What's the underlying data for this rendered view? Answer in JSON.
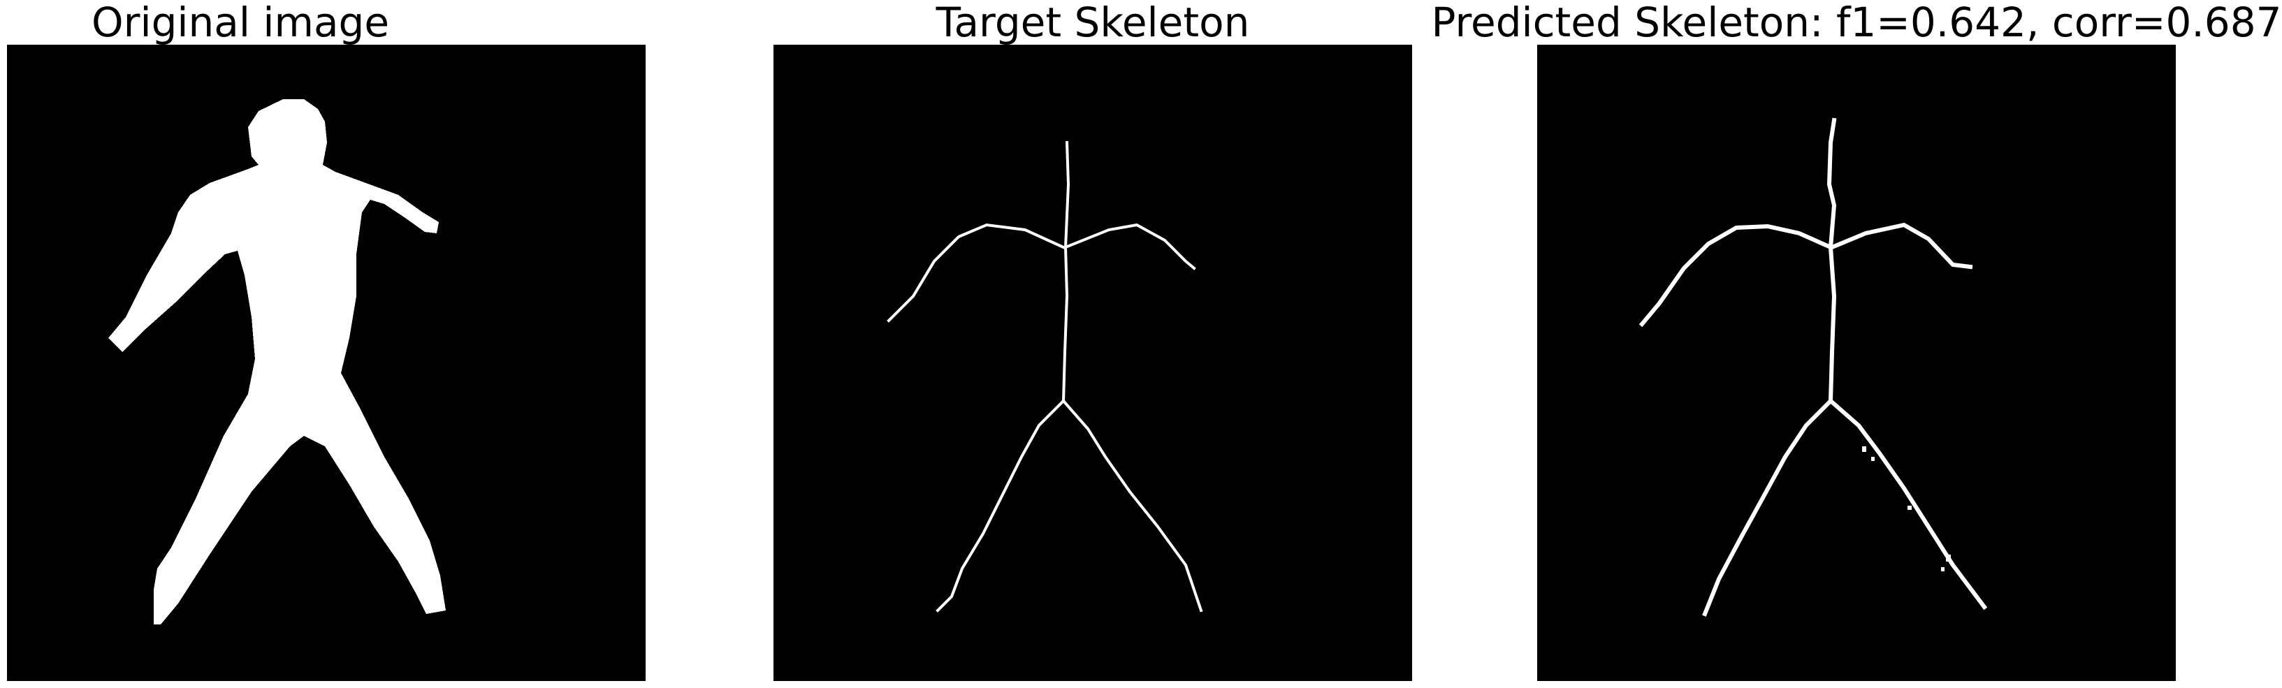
{
  "panels": [
    {
      "title": "Original image"
    },
    {
      "title": "Target Skeleton"
    },
    {
      "title": "Predicted Skeleton: f1=0.642, corr=0.687"
    }
  ],
  "colors": {
    "background": "#000000",
    "foreground": "#ffffff"
  }
}
